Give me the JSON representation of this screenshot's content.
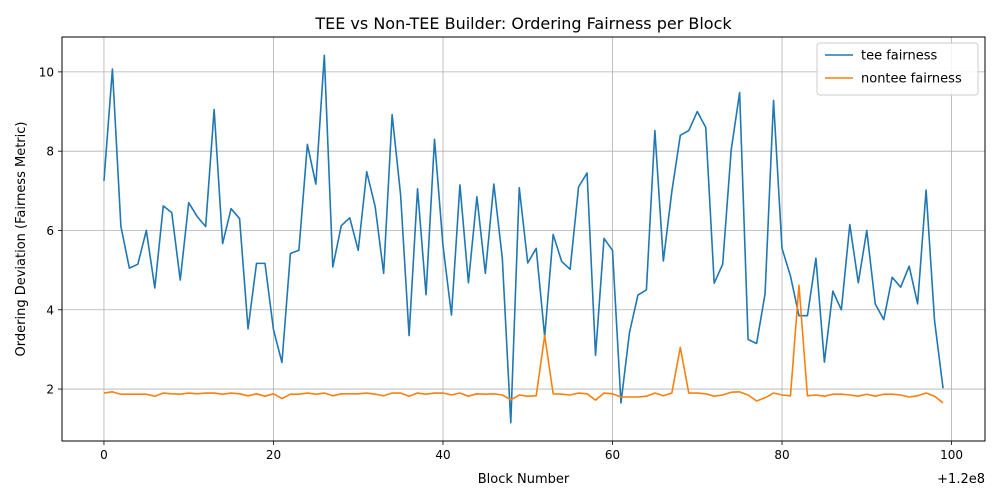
{
  "chart_data": {
    "type": "line",
    "title": "TEE vs Non-TEE Builder: Ordering Fairness per Block",
    "xlabel": "Block Number",
    "ylabel": "Ordering Deviation (Fairness Metric)",
    "x_offset_label": "+1.2e8",
    "xlim": [
      -4.95,
      103.95
    ],
    "ylim": [
      0.69,
      10.88
    ],
    "x_ticks": [
      0,
      20,
      40,
      60,
      80,
      100
    ],
    "y_ticks": [
      2,
      4,
      6,
      8,
      10
    ],
    "grid": true,
    "legend_position": "top-right",
    "x": [
      0,
      1,
      2,
      3,
      4,
      5,
      6,
      7,
      8,
      9,
      10,
      11,
      12,
      13,
      14,
      15,
      16,
      17,
      18,
      19,
      20,
      21,
      22,
      23,
      24,
      25,
      26,
      27,
      28,
      29,
      30,
      31,
      32,
      33,
      34,
      35,
      36,
      37,
      38,
      39,
      40,
      41,
      42,
      43,
      44,
      45,
      46,
      47,
      48,
      49,
      50,
      51,
      52,
      53,
      54,
      55,
      56,
      57,
      58,
      59,
      60,
      61,
      62,
      63,
      64,
      65,
      66,
      67,
      68,
      69,
      70,
      71,
      72,
      73,
      74,
      75,
      76,
      77,
      78,
      79,
      80,
      81,
      82,
      83,
      84,
      85,
      86,
      87,
      88,
      89,
      90,
      91,
      92,
      93,
      94,
      95,
      96,
      97,
      98,
      99
    ],
    "series": [
      {
        "name": "tee fairness",
        "color": "#1f77b4",
        "values": [
          7.25,
          10.07,
          6.1,
          5.05,
          5.15,
          6.0,
          4.55,
          6.62,
          6.45,
          4.75,
          6.7,
          6.35,
          6.1,
          9.05,
          5.67,
          6.55,
          6.3,
          3.52,
          5.17,
          5.17,
          3.5,
          2.67,
          5.42,
          5.5,
          8.17,
          7.17,
          10.42,
          5.08,
          6.12,
          6.32,
          5.5,
          7.48,
          6.6,
          4.92,
          8.92,
          6.9,
          3.35,
          7.05,
          4.38,
          8.3,
          5.62,
          3.87,
          7.15,
          4.68,
          6.85,
          4.92,
          7.17,
          5.3,
          1.15,
          7.08,
          5.18,
          5.55,
          3.32,
          5.9,
          5.22,
          5.02,
          7.1,
          7.45,
          2.85,
          5.8,
          5.5,
          1.65,
          3.42,
          4.37,
          4.5,
          8.52,
          5.23,
          6.98,
          8.4,
          8.52,
          9.0,
          8.6,
          4.67,
          5.15,
          8.02,
          9.48,
          3.25,
          3.15,
          4.4,
          9.28,
          5.55,
          4.85,
          3.85,
          3.85,
          5.3,
          2.68,
          4.47,
          4.0,
          6.15,
          4.68,
          6.0,
          4.15,
          3.75,
          4.82,
          4.57,
          5.1,
          4.15,
          7.02,
          3.72,
          2.02
        ]
      },
      {
        "name": "nontee fairness",
        "color": "#ff7f0e",
        "values": [
          1.9,
          1.93,
          1.87,
          1.87,
          1.87,
          1.87,
          1.82,
          1.9,
          1.88,
          1.87,
          1.9,
          1.88,
          1.9,
          1.9,
          1.87,
          1.9,
          1.88,
          1.83,
          1.88,
          1.82,
          1.88,
          1.76,
          1.87,
          1.87,
          1.9,
          1.87,
          1.9,
          1.83,
          1.88,
          1.88,
          1.88,
          1.9,
          1.87,
          1.83,
          1.9,
          1.9,
          1.82,
          1.9,
          1.87,
          1.9,
          1.9,
          1.85,
          1.9,
          1.82,
          1.88,
          1.87,
          1.88,
          1.85,
          1.73,
          1.85,
          1.82,
          1.83,
          3.35,
          1.88,
          1.87,
          1.85,
          1.9,
          1.88,
          1.72,
          1.9,
          1.88,
          1.8,
          1.8,
          1.8,
          1.82,
          1.9,
          1.83,
          1.9,
          3.05,
          1.9,
          1.9,
          1.88,
          1.82,
          1.85,
          1.92,
          1.93,
          1.85,
          1.7,
          1.78,
          1.9,
          1.85,
          1.83,
          4.62,
          1.83,
          1.85,
          1.82,
          1.87,
          1.87,
          1.85,
          1.82,
          1.87,
          1.82,
          1.87,
          1.87,
          1.85,
          1.8,
          1.83,
          1.9,
          1.82,
          1.65
        ]
      }
    ]
  }
}
